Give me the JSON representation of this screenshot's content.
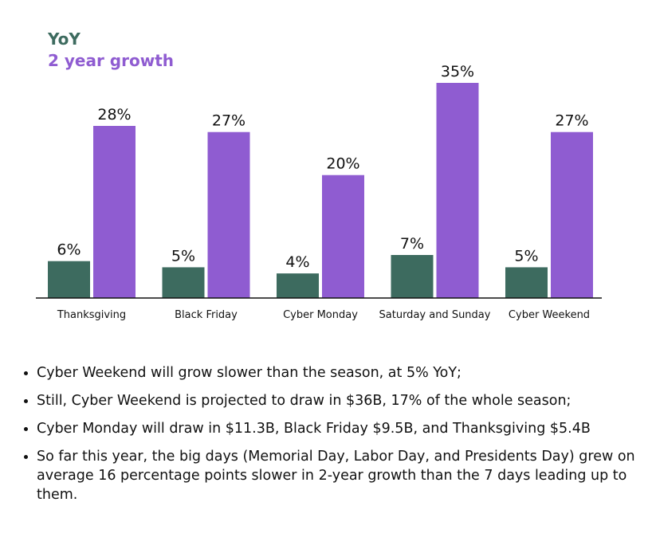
{
  "chart_data": {
    "type": "bar",
    "categories": [
      "Thanksgiving",
      "Black Friday",
      "Cyber Monday",
      "Saturday and Sunday",
      "Cyber Weekend"
    ],
    "series": [
      {
        "name": "YoY",
        "color": "#3d6b5f",
        "values": [
          6,
          5,
          4,
          7,
          5
        ],
        "labels": [
          "6%",
          "5%",
          "4%",
          "7%",
          "5%"
        ]
      },
      {
        "name": "2 year growth",
        "color": "#8f5cd1",
        "values": [
          28,
          27,
          20,
          35,
          27
        ],
        "labels": [
          "28%",
          "27%",
          "20%",
          "35%",
          "27%"
        ]
      }
    ],
    "title": "",
    "xlabel": "",
    "ylabel": "",
    "ylim": [
      0,
      35
    ],
    "grid": false,
    "legend": "top-left"
  },
  "bullets": [
    "Cyber Weekend will grow slower than the season, at 5% YoY;",
    "Still, Cyber Weekend is projected to draw in $36B, 17% of the whole season;",
    "Cyber Monday will draw in $11.3B, Black Friday $9.5B, and Thanksgiving $5.4B",
    "So far this year, the big days (Memorial Day, Labor Day, and Presidents Day) grew on average 16 percentage points slower in 2-year growth than the 7 days leading up to them."
  ]
}
